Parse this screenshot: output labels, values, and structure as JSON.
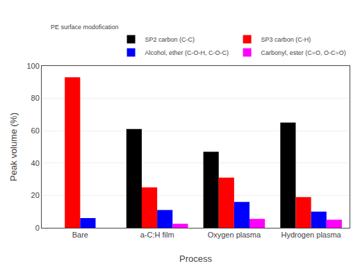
{
  "chart_data": {
    "type": "bar",
    "categories": [
      "Bare",
      "a-C:H film",
      "Oxygen plasma",
      "Hydrogen plasma"
    ],
    "series": [
      {
        "name": "SP2 carbon (C-C)",
        "color": "#000000",
        "values": [
          0,
          61,
          47,
          65
        ]
      },
      {
        "name": "SP3 carbon (C-H)",
        "color": "#ff0000",
        "values": [
          93,
          25,
          31,
          19
        ]
      },
      {
        "name": "Alcohol, ether (C-O-H, C-O-C)",
        "color": "#0000ff",
        "values": [
          6,
          11,
          16,
          10
        ]
      },
      {
        "name": "Carbonyl, ester (C=O, O-C=O)",
        "color": "#ff00ff",
        "values": [
          0,
          2.5,
          5.5,
          5
        ]
      }
    ],
    "legend_title": "PE surface modofication",
    "xlabel": "Process",
    "ylabel": "Peak volume (%)",
    "ylim": [
      0,
      100
    ],
    "yticks": [
      0,
      20,
      40,
      60,
      80,
      100
    ],
    "legend": "upper right"
  }
}
